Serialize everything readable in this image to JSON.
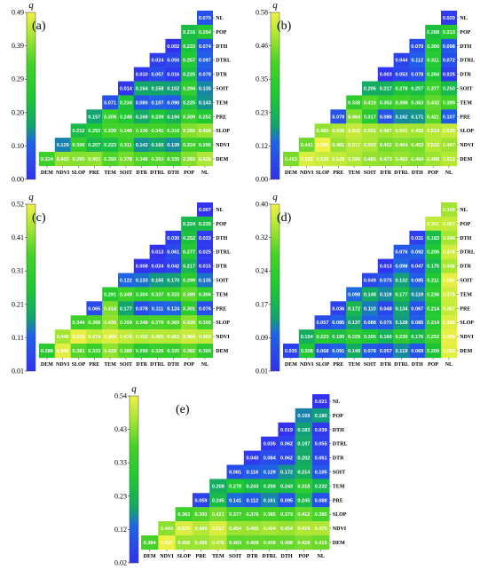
{
  "chart_data": [
    {
      "type": "heatmap",
      "panel_label": "(a)",
      "colorbar_title": "q",
      "colorbar_ticks": [
        "0.00",
        "0.10",
        "0.20",
        "0.29",
        "0.39",
        "0.49"
      ],
      "vmin": 0.0,
      "vmax": 0.49,
      "x_labels": [
        "DEM",
        "NDVI",
        "SLOP",
        "PRE",
        "TEM",
        "SOIT",
        "DTR",
        "DTRL",
        "DTH",
        "POP",
        "NL"
      ],
      "y_labels": [
        "NL",
        "POP",
        "DTH",
        "DTRL",
        "DTR",
        "SOIT",
        "TEM",
        "PRE",
        "SLOP",
        "NDVI",
        "DEM"
      ],
      "cells": [
        [
          "0.070"
        ],
        [
          "0.216",
          "0.254"
        ],
        [
          "0.002",
          "0.233",
          "0.074"
        ],
        [
          "0.024",
          "0.050",
          "0.257",
          "0.097"
        ],
        [
          "0.010",
          "0.057",
          "0.016",
          "0.225",
          "0.078"
        ],
        [
          "0.014",
          "0.164",
          "0.158",
          "0.152",
          "0.294",
          "0.135"
        ],
        [
          "0.071",
          "0.234",
          "0.080",
          "0.107",
          "0.090",
          "0.225",
          "0.143"
        ],
        [
          "0.157",
          "0.309",
          "0.248",
          "0.168",
          "0.239",
          "0.194",
          "0.309",
          "0.252"
        ],
        [
          "0.212",
          "0.252",
          "0.339",
          "0.340",
          "0.330",
          "0.341",
          "0.318",
          "0.392",
          "0.408"
        ],
        [
          "0.129",
          "0.306",
          "0.207",
          "0.223",
          "0.311",
          "0.142",
          "0.165",
          "0.139",
          "0.324",
          "0.296"
        ],
        [
          "0.324",
          "0.402",
          "0.395",
          "0.401",
          "0.350",
          "0.378",
          "0.346",
          "0.353",
          "0.335",
          "0.393",
          "0.428"
        ]
      ]
    },
    {
      "type": "heatmap",
      "panel_label": "(b)",
      "colorbar_title": "q",
      "colorbar_ticks": [
        "0.00",
        "0.12",
        "0.23",
        "0.35",
        "0.46",
        "0.58"
      ],
      "vmin": 0.0,
      "vmax": 0.58,
      "x_labels": [
        "DEM",
        "NDVI",
        "SLOP",
        "PRE",
        "TEM",
        "SOIT",
        "DTR",
        "DTRL",
        "DTH",
        "POP",
        "NL"
      ],
      "y_labels": [
        "NL",
        "POP",
        "DTH",
        "DTRL",
        "DTR",
        "SOIT",
        "TEM",
        "PRE",
        "SLOP",
        "NDVI",
        "DEM"
      ],
      "cells": [
        [
          "0.020"
        ],
        [
          "0.268",
          "0.313"
        ],
        [
          "0.070",
          "0.300",
          "0.098"
        ],
        [
          "0.044",
          "0.112",
          "0.311",
          "0.072"
        ],
        [
          "0.003",
          "0.053",
          "0.078",
          "0.284",
          "0.025"
        ],
        [
          "0.206",
          "0.217",
          "0.278",
          "0.257",
          "0.377",
          "0.250"
        ],
        [
          "0.338",
          "0.419",
          "0.353",
          "0.398",
          "0.363",
          "0.432",
          "0.389"
        ],
        [
          "0.078",
          "0.464",
          "0.317",
          "0.086",
          "0.162",
          "0.171",
          "0.421",
          "0.107"
        ],
        [
          "0.480",
          "0.505",
          "0.532",
          "0.501",
          "0.487",
          "0.501",
          "0.493",
          "0.514",
          "0.530"
        ],
        [
          "0.441",
          "0.580",
          "0.481",
          "0.517",
          "0.502",
          "0.452",
          "0.464",
          "0.453",
          "0.515",
          "0.487"
        ],
        [
          "0.453",
          "0.555",
          "0.536",
          "0.528",
          "0.506",
          "0.482",
          "0.473",
          "0.483",
          "0.464",
          "0.488",
          "0.513"
        ]
      ]
    },
    {
      "type": "heatmap",
      "panel_label": "(c)",
      "colorbar_title": "q",
      "colorbar_ticks": [
        "0.01",
        "0.11",
        "0.21",
        "0.31",
        "0.41",
        "0.52"
      ],
      "vmin": 0.01,
      "vmax": 0.52,
      "x_labels": [
        "DEM",
        "NDVI",
        "SLOP",
        "PRE",
        "TEM",
        "SOIT",
        "DTR",
        "DTRL",
        "DTH",
        "POP",
        "NL"
      ],
      "y_labels": [
        "NL",
        "POP",
        "DTH",
        "DTRL",
        "DTR",
        "SOIT",
        "TEM",
        "PRE",
        "SLOP",
        "NDVI",
        "DEM"
      ],
      "cells": [
        [
          "0.007"
        ],
        [
          "0.224",
          "0.235"
        ],
        [
          "0.030",
          "0.252",
          "0.033"
        ],
        [
          "0.013",
          "0.061",
          "0.277",
          "0.025"
        ],
        [
          "0.008",
          "0.024",
          "0.042",
          "0.217",
          "0.015"
        ],
        [
          "0.122",
          "0.133",
          "0.165",
          "0.170",
          "0.299",
          "0.135"
        ],
        [
          "0.291",
          "0.349",
          "0.304",
          "0.337",
          "0.333",
          "0.389",
          "0.306"
        ],
        [
          "0.065",
          "0.414",
          "0.177",
          "0.078",
          "0.111",
          "0.124",
          "0.301",
          "0.076"
        ],
        [
          "0.344",
          "0.368",
          "0.430",
          "0.359",
          "0.348",
          "0.370",
          "0.369",
          "0.428",
          "0.356"
        ],
        [
          "0.446",
          "0.515",
          "0.474",
          "0.499",
          "0.474",
          "0.455",
          "0.465",
          "0.461",
          "0.484",
          "0.469"
        ],
        [
          "0.288",
          "0.506",
          "0.381",
          "0.333",
          "0.429",
          "0.380",
          "0.290",
          "0.326",
          "0.320",
          "0.382",
          "0.300"
        ]
      ]
    },
    {
      "type": "heatmap",
      "panel_label": "(d)",
      "colorbar_title": "q",
      "colorbar_ticks": [
        "0.01",
        "0.09",
        "0.17",
        "0.24",
        "0.32",
        "0.40"
      ],
      "vmin": 0.01,
      "vmax": 0.4,
      "x_labels": [
        "DEM",
        "NDVI",
        "SLOP",
        "PRE",
        "TEM",
        "SOIT",
        "DTR",
        "DTRL",
        "DTH",
        "POP",
        "NL"
      ],
      "y_labels": [
        "NL",
        "POP",
        "DTH",
        "DTRL",
        "DTR",
        "SOIT",
        "TEM",
        "PRE",
        "SLOP",
        "NDVI",
        "DEM"
      ],
      "cells": [
        [
          "0.340"
        ],
        [
          "0.361",
          "0.367"
        ],
        [
          "0.031",
          "0.183",
          "0.344"
        ],
        [
          "0.076",
          "0.092",
          "0.206",
          "0.376"
        ],
        [
          "0.013",
          "0.098",
          "0.047",
          "0.175",
          "0.346"
        ],
        [
          "0.049",
          "0.075",
          "0.132",
          "0.085",
          "0.211",
          "0.394"
        ],
        [
          "0.098",
          "0.148",
          "0.119",
          "0.177",
          "0.119",
          "0.236",
          "0.375"
        ],
        [
          "0.036",
          "0.172",
          "0.110",
          "0.048",
          "0.134",
          "0.067",
          "0.214",
          "0.367"
        ],
        [
          "0.057",
          "0.085",
          "0.137",
          "0.088",
          "0.075",
          "0.128",
          "0.085",
          "0.214",
          "0.386"
        ],
        [
          "0.154",
          "0.223",
          "0.190",
          "0.229",
          "0.205",
          "0.160",
          "0.230",
          "0.176",
          "0.252",
          "0.396"
        ],
        [
          "0.035",
          "0.208",
          "0.068",
          "0.091",
          "0.149",
          "0.078",
          "0.057",
          "0.119",
          "0.069",
          "0.200",
          "0.389"
        ]
      ]
    },
    {
      "type": "heatmap",
      "panel_label": "(e)",
      "colorbar_title": "q",
      "colorbar_ticks": [
        "0.02",
        "0.12",
        "0.23",
        "0.33",
        "0.43",
        "0.54"
      ],
      "vmin": 0.02,
      "vmax": 0.54,
      "x_labels": [
        "DEM",
        "NDVI",
        "SLOP",
        "PRE",
        "TEM",
        "SOIT",
        "DTR",
        "DTRL",
        "DTH",
        "POP",
        "NL"
      ],
      "y_labels": [
        "NL",
        "POP",
        "DTH",
        "DTRL",
        "DTR",
        "SOIT",
        "TEM",
        "PRE",
        "SLOP",
        "NDVI",
        "DEM"
      ],
      "cells": [
        [
          "0.021"
        ],
        [
          "0.159",
          "0.180"
        ],
        [
          "0.019",
          "0.183",
          "0.039"
        ],
        [
          "0.035",
          "0.062",
          "0.197",
          "0.055"
        ],
        [
          "0.040",
          "0.084",
          "0.062",
          "0.202",
          "0.061"
        ],
        [
          "0.081",
          "0.116",
          "0.129",
          "0.172",
          "0.214",
          "0.105"
        ],
        [
          "0.208",
          "0.278",
          "0.243",
          "0.250",
          "0.243",
          "0.318",
          "0.232"
        ],
        [
          "0.059",
          "0.245",
          "0.141",
          "0.112",
          "0.161",
          "0.095",
          "0.245",
          "0.088"
        ],
        [
          "0.363",
          "0.393",
          "0.421",
          "0.377",
          "0.376",
          "0.385",
          "0.373",
          "0.412",
          "0.385"
        ],
        [
          "0.443",
          "0.520",
          "0.480",
          "0.517",
          "0.454",
          "0.455",
          "0.464",
          "0.454",
          "0.474",
          "0.475"
        ],
        [
          "0.384",
          "0.537",
          "0.456",
          "0.455",
          "0.476",
          "0.403",
          "0.408",
          "0.408",
          "0.408",
          "0.428",
          "0.415"
        ]
      ]
    }
  ]
}
